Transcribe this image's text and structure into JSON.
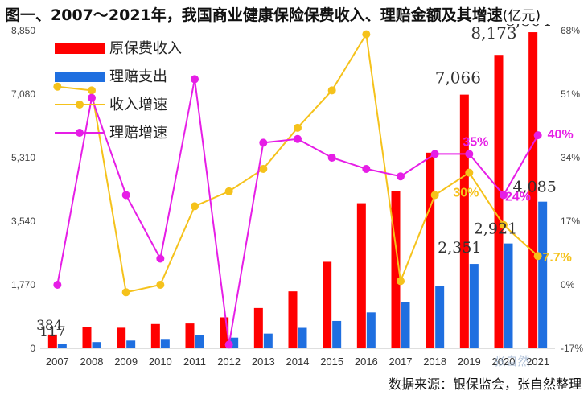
{
  "header": {
    "title": "图一、2007～2021年，我国商业健康保险保费收入、理赔金额及其增速",
    "unit": "(亿元)"
  },
  "footer": {
    "source": "数据来源：银保监会，张自然整理"
  },
  "watermark": "张自然",
  "colors": {
    "premium": "#ff0000",
    "claims": "#1f6fe0",
    "premium_growth": "#f5c21b",
    "claims_growth": "#e61ee6"
  },
  "chart_data": {
    "type": "bar",
    "categories": [
      "2007",
      "2008",
      "2009",
      "2010",
      "2011",
      "2012",
      "2013",
      "2014",
      "2015",
      "2016",
      "2017",
      "2018",
      "2019",
      "2020",
      "2021"
    ],
    "series": [
      {
        "name": "原保费收入",
        "type": "bar",
        "axis": "left",
        "values": [
          384,
          586,
          574,
          677,
          692,
          863,
          1123,
          1587,
          2410,
          4042,
          4389,
          5448,
          7066,
          8173,
          8804
        ]
      },
      {
        "name": "理赔支出",
        "type": "bar",
        "axis": "left",
        "values": [
          117,
          175,
          217,
          240,
          360,
          298,
          411,
          571,
          763,
          1001,
          1295,
          1744,
          2351,
          2921,
          4085
        ]
      },
      {
        "name": "收入增速",
        "type": "line",
        "axis": "right",
        "values": [
          53,
          52,
          -2,
          0,
          21,
          25,
          31,
          42,
          52,
          67,
          1,
          24,
          30,
          16,
          7.7
        ]
      },
      {
        "name": "理赔增速",
        "type": "line",
        "axis": "right",
        "values": [
          0,
          50,
          24,
          7,
          55,
          -16,
          38,
          39,
          34,
          31,
          29,
          35,
          35,
          24,
          40
        ]
      }
    ],
    "y_left": {
      "ticks": [
        "0",
        "1,770",
        "3,540",
        "5,310",
        "7,080",
        "8,850"
      ],
      "min": 0,
      "max": 8850
    },
    "y_right": {
      "ticks": [
        "-17%",
        "0%",
        "17%",
        "34%",
        "51%",
        "68%"
      ],
      "min": -17,
      "max": 68
    },
    "data_labels": [
      {
        "series": 0,
        "index": 0,
        "text": "384"
      },
      {
        "series": 1,
        "index": 0,
        "text": "117"
      },
      {
        "series": 0,
        "index": 12,
        "text": "7,066"
      },
      {
        "series": 0,
        "index": 13,
        "text": "8,173"
      },
      {
        "series": 0,
        "index": 14,
        "text": "8,804"
      },
      {
        "series": 1,
        "index": 12,
        "text": "2,351"
      },
      {
        "series": 1,
        "index": 13,
        "text": "2,921"
      },
      {
        "series": 1,
        "index": 14,
        "text": "4,085"
      },
      {
        "series": 2,
        "index": 12,
        "text": "30%"
      },
      {
        "series": 2,
        "index": 14,
        "text": "7.7%"
      },
      {
        "series": 3,
        "index": 12,
        "text": "35%"
      },
      {
        "series": 3,
        "index": 13,
        "text": "24%"
      },
      {
        "series": 3,
        "index": 14,
        "text": "40%"
      }
    ],
    "legend": "top-left",
    "grid": false
  }
}
